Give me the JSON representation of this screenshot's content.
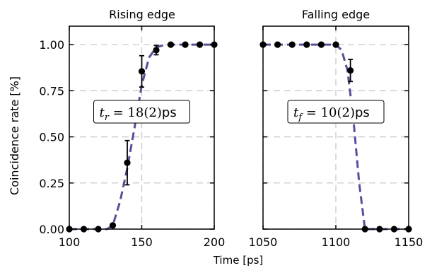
{
  "chart_data": [
    {
      "type": "line",
      "title": "Rising edge",
      "xlim": [
        100,
        200
      ],
      "ylim": [
        0,
        1.1
      ],
      "xticks": [
        100,
        150,
        200
      ],
      "yticks": [
        "0.00",
        "0.25",
        "0.50",
        "0.75",
        "1.00"
      ],
      "ylabel": "Coincidence rate [%]",
      "grid": true,
      "annotation": {
        "var": "t",
        "sub": "r",
        "value": " = 18(2)",
        "unit": "ps"
      },
      "series": [
        {
          "marker": "circle",
          "x": [
            100,
            110,
            120,
            130,
            140,
            150,
            160,
            170,
            180,
            190,
            200
          ],
          "y": [
            0.0,
            0.0,
            0.0,
            0.02,
            0.36,
            0.855,
            0.97,
            1.0,
            1.0,
            1.0,
            1.0
          ],
          "yerr": [
            0,
            0,
            0,
            0.01,
            0.12,
            0.085,
            0.025,
            0,
            0,
            0,
            0
          ]
        },
        {
          "style": "dashed-fit",
          "color": "#56509a",
          "x": [
            100,
            110,
            120,
            126,
            130,
            135,
            140,
            145,
            150,
            155,
            160,
            165,
            170,
            175,
            200
          ],
          "y": [
            0.0,
            0.0,
            0.0,
            0.0,
            0.02,
            0.15,
            0.33,
            0.55,
            0.78,
            0.93,
            0.985,
            0.997,
            1.0,
            1.0,
            1.0
          ]
        }
      ]
    },
    {
      "type": "line",
      "title": "Falling edge",
      "xlim": [
        1050,
        1150
      ],
      "ylim": [
        0,
        1.1
      ],
      "xticks": [
        1050,
        1100,
        1150
      ],
      "yticks": [
        "0.00",
        "0.25",
        "0.50",
        "0.75",
        "1.00"
      ],
      "grid": true,
      "annotation": {
        "var": "t",
        "sub": "f",
        "value": " = 10(2)",
        "unit": "ps"
      },
      "series": [
        {
          "marker": "circle",
          "x": [
            1050,
            1060,
            1070,
            1080,
            1090,
            1100,
            1110,
            1120,
            1130,
            1140,
            1150
          ],
          "y": [
            1.0,
            1.0,
            1.0,
            1.0,
            1.0,
            1.0,
            0.86,
            0.0,
            0.0,
            0.0,
            0.0
          ],
          "yerr": [
            0,
            0,
            0,
            0,
            0,
            0,
            0.06,
            0,
            0,
            0,
            0
          ]
        },
        {
          "style": "dashed-fit",
          "color": "#56509a",
          "x": [
            1050,
            1100,
            1104,
            1108,
            1112,
            1116,
            1120,
            1150
          ],
          "y": [
            1.0,
            1.0,
            0.97,
            0.86,
            0.6,
            0.25,
            0.0,
            0.0
          ]
        }
      ]
    }
  ],
  "xlabel": "Time [ps]"
}
